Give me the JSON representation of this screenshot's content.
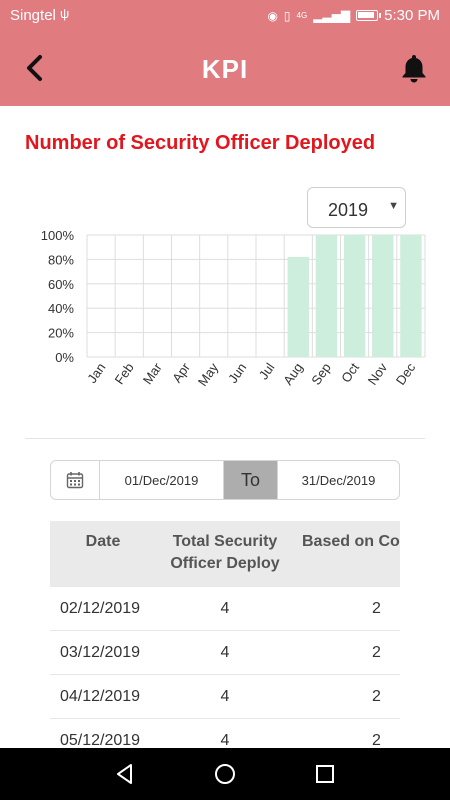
{
  "status_bar": {
    "carrier": "Singtel",
    "time": "5:30 PM",
    "network": "4G"
  },
  "app_bar": {
    "title": "KPI"
  },
  "section": {
    "title": "Number of Security Officer Deployed"
  },
  "year_select": {
    "value": "2019"
  },
  "chart_data": {
    "type": "bar",
    "categories": [
      "Jan",
      "Feb",
      "Mar",
      "Apr",
      "May",
      "Jun",
      "Jul",
      "Aug",
      "Sep",
      "Oct",
      "Nov",
      "Dec"
    ],
    "values": [
      0,
      0,
      0,
      0,
      0,
      0,
      0,
      82,
      100,
      100,
      100,
      100
    ],
    "y_ticks": [
      "0%",
      "20%",
      "40%",
      "60%",
      "80%",
      "100%"
    ],
    "ylim": [
      0,
      100
    ],
    "grid": true,
    "bar_color": "#cdeedd"
  },
  "date_range": {
    "from": "01/Dec/2019",
    "to_label": "To",
    "to": "31/Dec/2019"
  },
  "table": {
    "headers": [
      "Date",
      "Total Security Officer Deploy",
      "Based on Co"
    ],
    "header_lines": {
      "c2_line1": "Total Security",
      "c2_line2": "Officer Deploy"
    },
    "rows": [
      {
        "date": "02/12/2019",
        "total": "4",
        "based": "2"
      },
      {
        "date": "03/12/2019",
        "total": "4",
        "based": "2"
      },
      {
        "date": "04/12/2019",
        "total": "4",
        "based": "2"
      },
      {
        "date": "05/12/2019",
        "total": "4",
        "based": "2"
      }
    ]
  },
  "colors": {
    "accent": "#e07b80",
    "title_red": "#e3161e",
    "bar": "#cdeedd"
  }
}
